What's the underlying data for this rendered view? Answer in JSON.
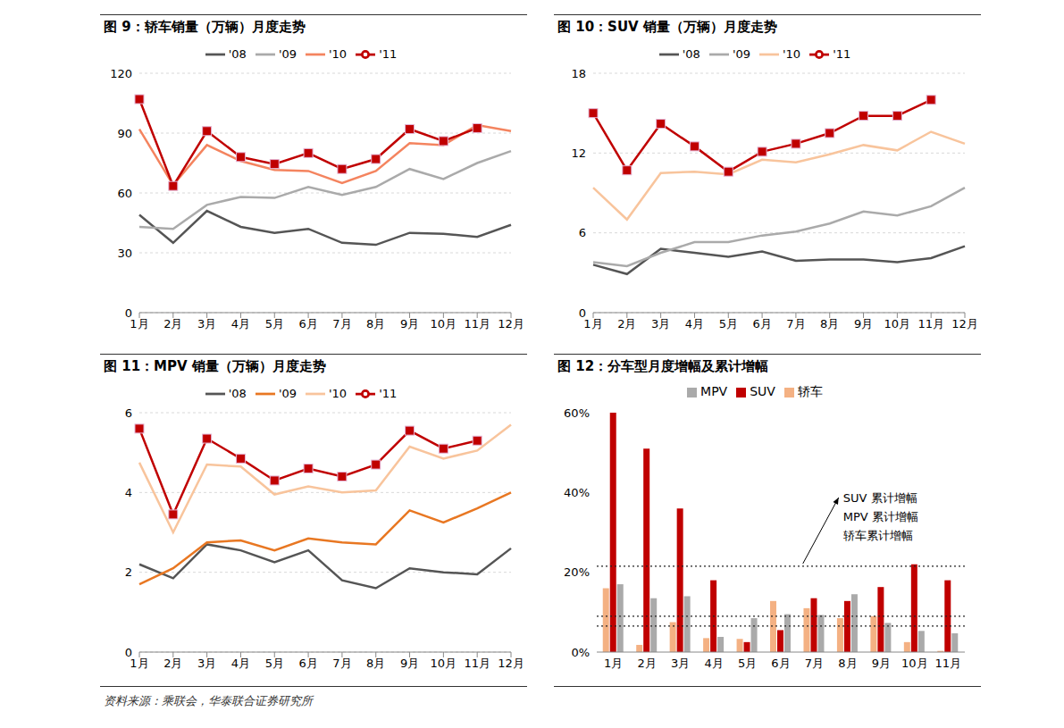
{
  "chart_data": [
    {
      "type": "line",
      "title": "图 9：轿车销量（万辆）月度走势",
      "categories": [
        "1月",
        "2月",
        "3月",
        "4月",
        "5月",
        "6月",
        "7月",
        "8月",
        "9月",
        "10月",
        "11月",
        "12月"
      ],
      "ylim": [
        0,
        120
      ],
      "yticks": [
        0,
        30,
        60,
        90,
        120
      ],
      "grid": true,
      "legend": "top",
      "series": [
        {
          "name": "'08",
          "color": "#555555",
          "values": [
            49,
            35,
            51,
            43,
            40,
            42,
            35,
            34,
            40,
            39.5,
            38,
            44
          ]
        },
        {
          "name": "'09",
          "color": "#aaaaaa",
          "values": [
            43,
            42,
            54,
            58,
            57.5,
            63,
            59,
            63,
            72,
            67,
            75,
            81
          ]
        },
        {
          "name": "'10",
          "color": "#f4845f",
          "values": [
            92,
            64,
            84,
            76,
            71.5,
            71,
            65,
            71,
            85,
            84,
            94,
            91
          ]
        },
        {
          "name": "'11",
          "color": "#c00000",
          "marker": "square",
          "values": [
            107,
            63.5,
            91,
            78,
            74.5,
            80,
            72,
            77,
            92,
            86,
            92.5,
            null
          ]
        }
      ]
    },
    {
      "type": "line",
      "title": "图 10：SUV 销量（万辆）月度走势",
      "categories": [
        "1月",
        "2月",
        "3月",
        "4月",
        "5月",
        "6月",
        "7月",
        "8月",
        "9月",
        "10月",
        "11月",
        "12月"
      ],
      "ylim": [
        0,
        18
      ],
      "yticks": [
        0,
        6,
        12,
        18
      ],
      "grid": true,
      "legend": "top",
      "series": [
        {
          "name": "'08",
          "color": "#555555",
          "values": [
            3.6,
            2.9,
            4.8,
            4.5,
            4.2,
            4.6,
            3.9,
            4.0,
            4.0,
            3.8,
            4.1,
            5.0
          ]
        },
        {
          "name": "'09",
          "color": "#aaaaaa",
          "values": [
            3.8,
            3.5,
            4.5,
            5.3,
            5.3,
            5.8,
            6.1,
            6.7,
            7.6,
            7.3,
            8.0,
            9.4
          ]
        },
        {
          "name": "'10",
          "color": "#f8c49c",
          "values": [
            9.4,
            7.0,
            10.5,
            10.6,
            10.4,
            11.5,
            11.3,
            11.9,
            12.6,
            12.2,
            13.6,
            12.7
          ]
        },
        {
          "name": "'11",
          "color": "#c00000",
          "marker": "square",
          "values": [
            15.0,
            10.7,
            14.2,
            12.5,
            10.6,
            12.1,
            12.7,
            13.5,
            14.8,
            14.8,
            16.0,
            null
          ]
        }
      ]
    },
    {
      "type": "line",
      "title": "图 11：MPV 销量（万辆）月度走势",
      "categories": [
        "1月",
        "2月",
        "3月",
        "4月",
        "5月",
        "6月",
        "7月",
        "8月",
        "9月",
        "10月",
        "11月",
        "12月"
      ],
      "ylim": [
        0,
        6
      ],
      "yticks": [
        0,
        2,
        4,
        6
      ],
      "grid": true,
      "legend": "top",
      "series": [
        {
          "name": "'08",
          "color": "#555555",
          "values": [
            2.2,
            1.85,
            2.7,
            2.55,
            2.25,
            2.55,
            1.8,
            1.6,
            2.1,
            2.0,
            1.95,
            2.6
          ]
        },
        {
          "name": "'09",
          "color": "#e87722",
          "values": [
            1.7,
            2.1,
            2.75,
            2.8,
            2.55,
            2.85,
            2.75,
            2.7,
            3.55,
            3.25,
            3.6,
            4.0
          ]
        },
        {
          "name": "'10",
          "color": "#f8c49c",
          "values": [
            4.75,
            3.0,
            4.7,
            4.65,
            3.95,
            4.15,
            4.0,
            4.05,
            5.15,
            4.85,
            5.05,
            5.7
          ]
        },
        {
          "name": "'11",
          "color": "#c00000",
          "marker": "square",
          "values": [
            5.6,
            3.45,
            5.35,
            4.85,
            4.3,
            4.6,
            4.4,
            4.7,
            5.55,
            5.1,
            5.3,
            null
          ]
        }
      ]
    },
    {
      "type": "bar",
      "title": "图 12：分车型月度增幅及累计增幅",
      "categories": [
        "1月",
        "2月",
        "3月",
        "4月",
        "5月",
        "6月",
        "7月",
        "8月",
        "9月",
        "10月",
        "11月"
      ],
      "ylim": [
        0,
        60
      ],
      "yticks": [
        {
          "value": 0,
          "label": "0%"
        },
        {
          "value": 20,
          "label": "20%"
        },
        {
          "value": 40,
          "label": "40%"
        },
        {
          "value": 60,
          "label": "60%"
        }
      ],
      "legend": "top",
      "series": [
        {
          "name": "轿车",
          "color": "#f4b183",
          "values": [
            16,
            1.8,
            7.5,
            3.5,
            3.3,
            12.8,
            11,
            8.5,
            9,
            2.5,
            0.3
          ]
        },
        {
          "name": "SUV",
          "color": "#c00000",
          "values": [
            60,
            51,
            36,
            18,
            2.5,
            5.5,
            13.5,
            12.8,
            16.3,
            22,
            18
          ]
        },
        {
          "name": "MPV",
          "color": "#aaaaaa",
          "values": [
            17,
            13.5,
            14,
            3.8,
            8.5,
            9.5,
            9.3,
            14.5,
            7.3,
            5.3,
            4.7
          ]
        }
      ],
      "reference_lines": [
        {
          "name": "SUV 累计增幅",
          "value": 21.5,
          "line_style": "dotted"
        },
        {
          "name": "MPV 累计增幅",
          "value": 9,
          "line_style": "dotted"
        },
        {
          "name": "轿车累计增幅",
          "value": 6.5,
          "line_style": "dotted"
        }
      ]
    }
  ],
  "source": "资料来源：乘联会，华泰联合证券研究所"
}
